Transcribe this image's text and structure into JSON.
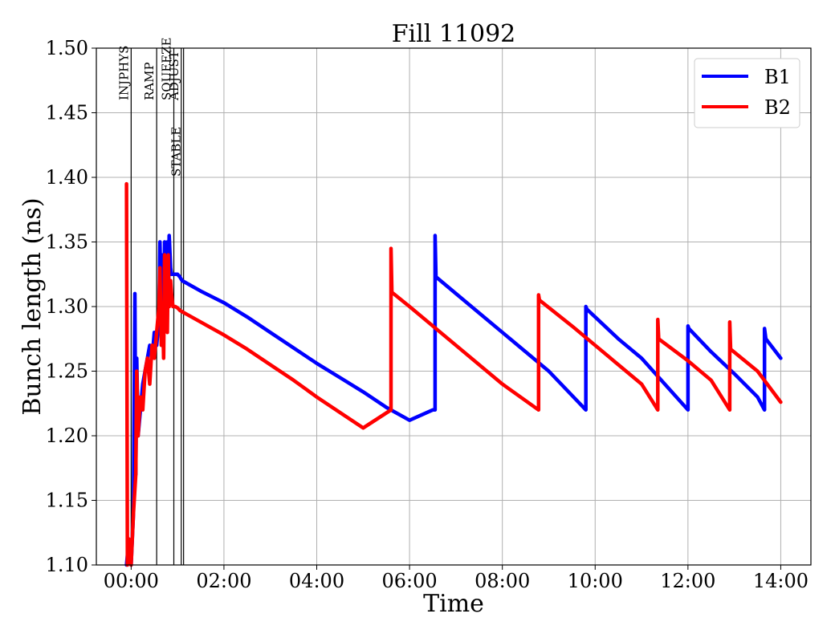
{
  "chart_data": {
    "type": "line",
    "title": "Fill 11092",
    "xlabel": "Time",
    "ylabel": "Bunch length (ns)",
    "x_unit": "hours",
    "xlim": [
      -0.75,
      14.65
    ],
    "ylim": [
      1.1,
      1.5
    ],
    "x_ticks": [
      {
        "value": 0,
        "label": "00:00"
      },
      {
        "value": 2,
        "label": "02:00"
      },
      {
        "value": 4,
        "label": "04:00"
      },
      {
        "value": 6,
        "label": "06:00"
      },
      {
        "value": 8,
        "label": "08:00"
      },
      {
        "value": 10,
        "label": "10:00"
      },
      {
        "value": 12,
        "label": "12:00"
      },
      {
        "value": 14,
        "label": "14:00"
      }
    ],
    "y_ticks": [
      "1.10",
      "1.15",
      "1.20",
      "1.25",
      "1.30",
      "1.35",
      "1.40",
      "1.45",
      "1.50"
    ],
    "grid": true,
    "legend_position": "top-right",
    "phases": [
      {
        "label": "INJPHYS",
        "x": 0.0
      },
      {
        "label": "RAMP",
        "x": 0.55
      },
      {
        "label": "SQUEEZE",
        "x": 0.92
      },
      {
        "label": "ADJUST",
        "x": 1.08
      },
      {
        "label": "STABLE",
        "x": 1.13
      }
    ],
    "series": [
      {
        "name": "B1",
        "color": "#0000ff",
        "x": [
          -0.1,
          -0.05,
          0.0,
          0.05,
          0.08,
          0.1,
          0.12,
          0.15,
          0.2,
          0.25,
          0.3,
          0.35,
          0.4,
          0.45,
          0.5,
          0.52,
          0.55,
          0.6,
          0.62,
          0.65,
          0.68,
          0.7,
          0.72,
          0.75,
          0.78,
          0.8,
          0.82,
          0.85,
          0.87,
          0.9,
          0.95,
          1.0,
          1.05,
          1.1,
          1.15,
          1.2,
          1.5,
          2.0,
          2.5,
          3.0,
          3.5,
          4.0,
          4.5,
          5.0,
          5.5,
          6.0,
          6.5,
          6.55,
          6.55,
          6.57,
          7.0,
          8.0,
          9.0,
          9.8,
          9.8,
          9.82,
          10.5,
          11.0,
          11.5,
          12.0,
          12.0,
          12.02,
          12.5,
          13.0,
          13.5,
          13.65,
          13.65,
          13.68,
          14.0
        ],
        "y": [
          1.1,
          1.12,
          1.1,
          1.14,
          1.31,
          1.17,
          1.26,
          1.2,
          1.22,
          1.24,
          1.25,
          1.26,
          1.27,
          1.26,
          1.28,
          1.28,
          1.27,
          1.29,
          1.35,
          1.3,
          1.34,
          1.29,
          1.35,
          1.3,
          1.35,
          1.3,
          1.355,
          1.33,
          1.325,
          1.325,
          1.325,
          1.325,
          1.323,
          1.32,
          1.319,
          1.318,
          1.312,
          1.303,
          1.292,
          1.28,
          1.268,
          1.256,
          1.245,
          1.234,
          1.222,
          1.212,
          1.22,
          1.22,
          1.355,
          1.323,
          1.31,
          1.28,
          1.25,
          1.22,
          1.3,
          1.298,
          1.275,
          1.26,
          1.24,
          1.22,
          1.285,
          1.283,
          1.265,
          1.248,
          1.23,
          1.22,
          1.283,
          1.275,
          1.26
        ]
      },
      {
        "name": "B2",
        "color": "#ff0000",
        "x": [
          -0.1,
          -0.08,
          -0.05,
          0.0,
          0.05,
          0.1,
          0.12,
          0.15,
          0.2,
          0.25,
          0.3,
          0.35,
          0.4,
          0.45,
          0.5,
          0.55,
          0.6,
          0.62,
          0.65,
          0.68,
          0.7,
          0.72,
          0.75,
          0.78,
          0.8,
          0.82,
          0.85,
          0.87,
          0.9,
          0.95,
          1.0,
          1.05,
          1.1,
          1.15,
          1.2,
          1.5,
          2.0,
          2.5,
          3.0,
          3.5,
          4.0,
          4.5,
          5.0,
          5.6,
          5.6,
          5.62,
          6.0,
          7.0,
          8.0,
          8.78,
          8.78,
          8.8,
          9.5,
          10.0,
          10.5,
          11.0,
          11.35,
          11.35,
          11.37,
          12.0,
          12.5,
          12.9,
          12.9,
          12.92,
          13.5,
          14.0
        ],
        "y": [
          1.395,
          1.1,
          1.12,
          1.1,
          1.14,
          1.17,
          1.25,
          1.2,
          1.23,
          1.22,
          1.25,
          1.26,
          1.24,
          1.27,
          1.26,
          1.28,
          1.3,
          1.33,
          1.27,
          1.3,
          1.26,
          1.34,
          1.32,
          1.28,
          1.34,
          1.3,
          1.32,
          1.31,
          1.3,
          1.3,
          1.299,
          1.297,
          1.296,
          1.295,
          1.294,
          1.288,
          1.278,
          1.267,
          1.255,
          1.243,
          1.23,
          1.218,
          1.206,
          1.22,
          1.345,
          1.311,
          1.3,
          1.27,
          1.24,
          1.22,
          1.309,
          1.305,
          1.285,
          1.27,
          1.255,
          1.24,
          1.22,
          1.29,
          1.275,
          1.258,
          1.243,
          1.22,
          1.288,
          1.267,
          1.25,
          1.226
        ]
      }
    ]
  }
}
